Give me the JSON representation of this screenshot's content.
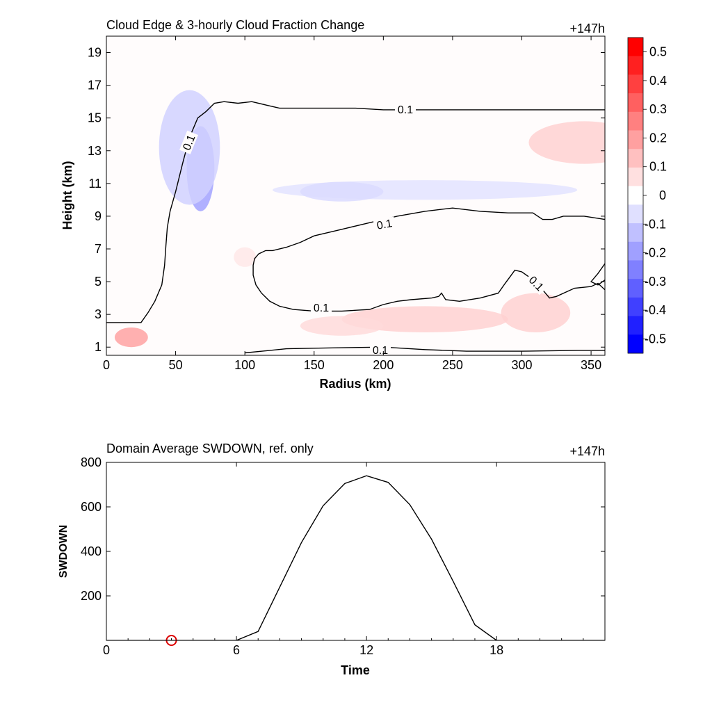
{
  "chart_data": [
    {
      "type": "heatmap",
      "title": "Cloud Edge & 3-hourly Cloud Fraction Change",
      "time_label": "+147h",
      "xlabel": "Radius (km)",
      "ylabel": "Height (km)",
      "xlim": [
        0,
        360
      ],
      "ylim": [
        0.5,
        20
      ],
      "x_ticks": [
        "0",
        "50",
        "100",
        "150",
        "200",
        "250",
        "300",
        "350"
      ],
      "y_ticks": [
        "1",
        "3",
        "5",
        "7",
        "9",
        "11",
        "13",
        "15",
        "17",
        "19"
      ],
      "colorbar": {
        "ticks": [
          "0.5",
          "0.4",
          "0.3",
          "0.2",
          "0.1",
          "0",
          "-0.1",
          "-0.2",
          "-0.3",
          "-0.4",
          "-0.5"
        ],
        "range": [
          -0.55,
          0.55
        ],
        "colors": [
          "#ff0000",
          "#ff2020",
          "#ff4040",
          "#ff6060",
          "#ff8080",
          "#ffa0a0",
          "#ffc0c0",
          "#ffe0e0",
          "#ffffff",
          "#e0e0ff",
          "#c0c0ff",
          "#a0a0ff",
          "#8080ff",
          "#6060ff",
          "#4040ff",
          "#2020ff",
          "#0000ff"
        ]
      },
      "contour_level_label": "0.1",
      "contour_labels": [
        "0.1",
        "0.1",
        "0.1",
        "0.1",
        "0.1",
        "0.1"
      ],
      "contours": [
        [
          [
            0,
            2.5
          ],
          [
            25,
            2.5
          ],
          [
            30,
            3.1
          ],
          [
            35,
            3.8
          ],
          [
            40,
            4.8
          ],
          [
            42,
            6.0
          ],
          [
            43,
            7.2
          ],
          [
            44,
            8.3
          ],
          [
            46,
            9.3
          ],
          [
            50,
            10.5
          ],
          [
            55,
            12.2
          ],
          [
            60,
            13.8
          ],
          [
            66,
            15.0
          ],
          [
            72,
            15.4
          ],
          [
            78,
            15.9
          ],
          [
            85,
            16.0
          ],
          [
            95,
            15.9
          ],
          [
            105,
            16.0
          ],
          [
            115,
            15.8
          ],
          [
            125,
            15.6
          ],
          [
            150,
            15.6
          ],
          [
            180,
            15.6
          ],
          [
            200,
            15.5
          ],
          [
            230,
            15.5
          ],
          [
            260,
            15.5
          ],
          [
            300,
            15.5
          ],
          [
            330,
            15.5
          ],
          [
            360,
            15.5
          ]
        ],
        [
          [
            360,
            8.8
          ],
          [
            345,
            9.0
          ],
          [
            330,
            9.0
          ],
          [
            322,
            8.8
          ],
          [
            315,
            8.8
          ],
          [
            308,
            9.2
          ],
          [
            290,
            9.2
          ],
          [
            270,
            9.3
          ],
          [
            250,
            9.5
          ],
          [
            230,
            9.3
          ],
          [
            210,
            9.0
          ],
          [
            190,
            8.6
          ],
          [
            170,
            8.2
          ],
          [
            150,
            7.8
          ],
          [
            140,
            7.4
          ],
          [
            130,
            7.1
          ],
          [
            120,
            6.9
          ],
          [
            115,
            6.9
          ],
          [
            110,
            6.7
          ],
          [
            107,
            6.4
          ],
          [
            106,
            6.0
          ],
          [
            106,
            5.4
          ],
          [
            108,
            4.8
          ],
          [
            112,
            4.3
          ],
          [
            118,
            3.8
          ],
          [
            125,
            3.5
          ],
          [
            135,
            3.3
          ],
          [
            150,
            3.2
          ],
          [
            170,
            3.2
          ],
          [
            190,
            3.3
          ],
          [
            200,
            3.6
          ],
          [
            210,
            3.8
          ],
          [
            220,
            3.9
          ],
          [
            235,
            4.0
          ],
          [
            240,
            4.1
          ],
          [
            242,
            4.3
          ],
          [
            245,
            3.9
          ],
          [
            255,
            3.8
          ],
          [
            270,
            4.0
          ],
          [
            283,
            4.3
          ],
          [
            288,
            4.9
          ],
          [
            295,
            5.7
          ],
          [
            300,
            5.6
          ],
          [
            305,
            5.3
          ],
          [
            315,
            4.5
          ],
          [
            320,
            4.0
          ],
          [
            325,
            4.1
          ],
          [
            338,
            4.6
          ],
          [
            350,
            4.7
          ],
          [
            355,
            4.9
          ],
          [
            360,
            4.5
          ]
        ],
        [
          [
            360,
            6.1
          ],
          [
            355,
            5.5
          ],
          [
            350,
            5.0
          ],
          [
            355,
            4.8
          ],
          [
            360,
            5.1
          ]
        ],
        [
          [
            100,
            0.65
          ],
          [
            130,
            0.9
          ],
          [
            160,
            0.95
          ],
          [
            200,
            1.0
          ],
          [
            230,
            0.85
          ],
          [
            260,
            0.75
          ],
          [
            300,
            0.75
          ],
          [
            340,
            0.8
          ],
          [
            360,
            0.8
          ]
        ]
      ],
      "field_blobs": [
        {
          "x": 18,
          "y": 1.6,
          "rx": 12,
          "ry": 0.6,
          "value": 0.2
        },
        {
          "x": 68,
          "y": 11.9,
          "rx": 10,
          "ry": 2.6,
          "value": -0.2
        },
        {
          "x": 60,
          "y": 13.2,
          "rx": 22,
          "ry": 3.5,
          "value": -0.1
        },
        {
          "x": 345,
          "y": 13.5,
          "rx": 40,
          "ry": 1.3,
          "value": 0.1
        },
        {
          "x": 230,
          "y": 2.7,
          "rx": 60,
          "ry": 0.8,
          "value": 0.1
        },
        {
          "x": 170,
          "y": 2.3,
          "rx": 30,
          "ry": 0.6,
          "value": 0.08
        },
        {
          "x": 310,
          "y": 3.1,
          "rx": 25,
          "ry": 1.2,
          "value": 0.1
        },
        {
          "x": 230,
          "y": 10.6,
          "rx": 110,
          "ry": 0.6,
          "value": -0.06
        },
        {
          "x": 170,
          "y": 10.5,
          "rx": 30,
          "ry": 0.6,
          "value": -0.08
        },
        {
          "x": 100,
          "y": 6.5,
          "rx": 8,
          "ry": 0.6,
          "value": 0.05
        }
      ]
    },
    {
      "type": "line",
      "title": "Domain Average SWDOWN, ref. only",
      "time_label": "+147h",
      "xlabel": "Time",
      "ylabel": "SWDOWN",
      "xlim": [
        0,
        23
      ],
      "ylim": [
        0,
        800
      ],
      "x_ticks": [
        0,
        6,
        12,
        18
      ],
      "y_ticks": [
        200,
        400,
        600,
        800
      ],
      "x": [
        0,
        1,
        2,
        3,
        4,
        5,
        6,
        7,
        8,
        9,
        10,
        11,
        12,
        13,
        14,
        15,
        16,
        17,
        18,
        19,
        20,
        21,
        22,
        23
      ],
      "values": [
        0,
        0,
        0,
        0,
        0,
        0,
        0,
        40,
        240,
        440,
        605,
        705,
        740,
        710,
        610,
        455,
        265,
        70,
        0,
        0,
        0,
        0,
        0,
        0
      ],
      "marker": {
        "x": 3,
        "y": 0,
        "color": "#dd0000"
      }
    }
  ]
}
